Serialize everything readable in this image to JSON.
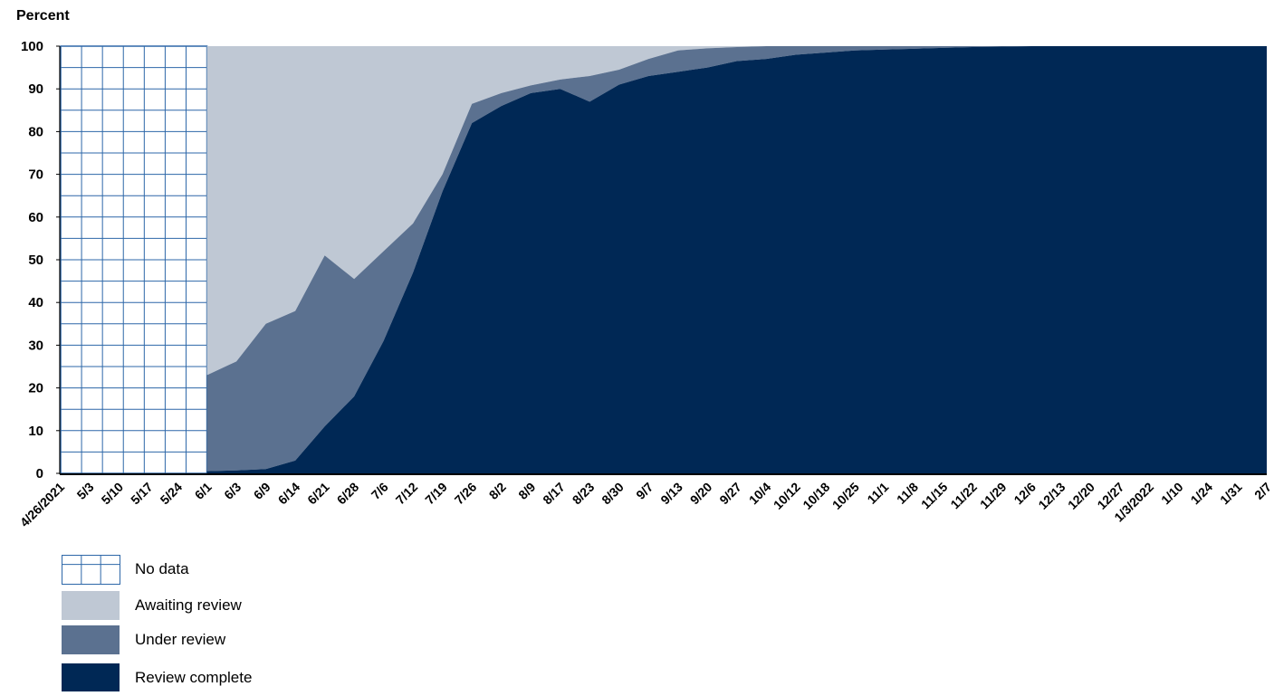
{
  "chart_data": {
    "type": "area",
    "ylabel": "Percent",
    "ylim": [
      0,
      100
    ],
    "yticks": [
      0,
      10,
      20,
      30,
      40,
      50,
      60,
      70,
      80,
      90,
      100
    ],
    "categories": [
      "4/26/2021",
      "5/3",
      "5/10",
      "5/17",
      "5/24",
      "6/1",
      "6/3",
      "6/9",
      "6/14",
      "6/21",
      "6/28",
      "7/6",
      "7/12",
      "7/19",
      "7/26",
      "8/2",
      "8/9",
      "8/17",
      "8/23",
      "8/30",
      "9/7",
      "9/13",
      "9/20",
      "9/27",
      "10/4",
      "10/12",
      "10/18",
      "10/25",
      "11/1",
      "11/8",
      "11/15",
      "11/22",
      "11/29",
      "12/6",
      "12/13",
      "12/20",
      "12/27",
      "1/3/2022",
      "1/10",
      "1/24",
      "1/31",
      "2/7"
    ],
    "no_data_categories": [
      "4/26/2021",
      "5/3",
      "5/10",
      "5/17",
      "5/24",
      "6/1"
    ],
    "series": [
      {
        "name": "Review complete",
        "color": "#002855",
        "values": [
          null,
          null,
          null,
          null,
          null,
          0.5,
          0.7,
          1,
          3,
          11,
          18,
          31,
          47,
          66,
          82,
          86,
          89,
          90,
          87,
          91,
          93,
          94,
          95,
          96.5,
          97,
          98,
          98.5,
          99,
          99.2,
          99.4,
          99.6,
          99.8,
          99.9,
          100,
          100,
          100,
          100,
          100,
          100,
          100,
          100,
          100
        ]
      },
      {
        "name": "Under review",
        "color": "#5b7190",
        "values": [
          null,
          null,
          null,
          null,
          null,
          22.5,
          25.5,
          34,
          35,
          40,
          27.5,
          21,
          11.5,
          4,
          4.5,
          3,
          1.8,
          2.2,
          6,
          3.5,
          4,
          5,
          4.5,
          3.3,
          3,
          2,
          1.5,
          1,
          0.8,
          0.6,
          0.4,
          0.2,
          0.1,
          0,
          0,
          0,
          0,
          0,
          0,
          0,
          0,
          0
        ]
      },
      {
        "name": "Awaiting review",
        "color": "#bfc8d4",
        "values": [
          null,
          null,
          null,
          null,
          null,
          77,
          73.8,
          65,
          62,
          49,
          54.5,
          48,
          41.5,
          30,
          13.5,
          11,
          9.2,
          7.8,
          7,
          5.5,
          3,
          1,
          0.5,
          0.2,
          0,
          0,
          0,
          0,
          0,
          0,
          0,
          0,
          0,
          0,
          0,
          0,
          0,
          0,
          0,
          0,
          0,
          0
        ]
      }
    ],
    "legend": [
      {
        "label": "No data",
        "style": "grid"
      },
      {
        "label": "Awaiting review",
        "color": "#bfc8d4"
      },
      {
        "label": "Under review",
        "color": "#5b7190"
      },
      {
        "label": "Review complete",
        "color": "#002855"
      }
    ],
    "no_data_grid_color": "#2d67a8",
    "legend_position": "bottom-left",
    "grid": false
  }
}
